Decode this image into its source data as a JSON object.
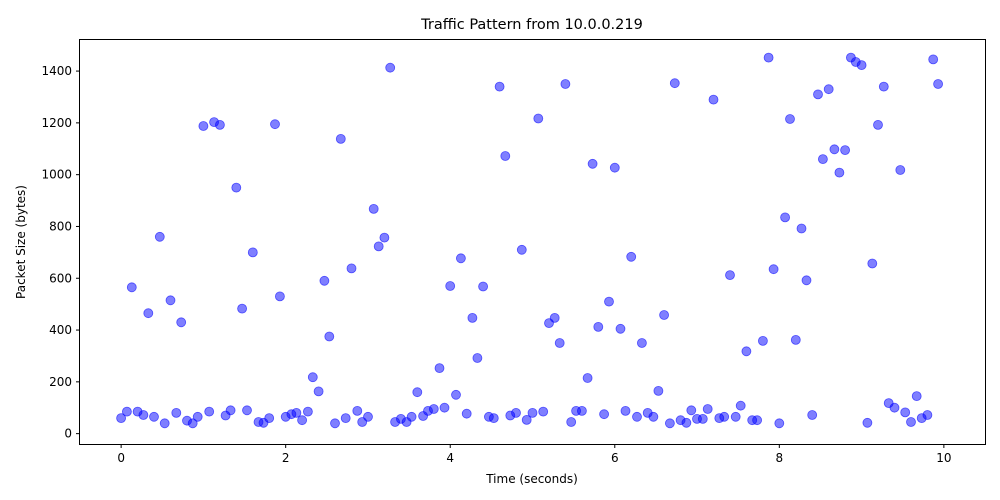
{
  "chart_data": {
    "type": "scatter",
    "title": "Traffic Pattern from 10.0.0.219",
    "xlabel": "Time (seconds)",
    "ylabel": "Packet Size (bytes)",
    "xlim": [
      -0.5,
      10.5
    ],
    "ylim": [
      -40,
      1520
    ],
    "xticks": [
      0,
      2,
      4,
      6,
      8,
      10
    ],
    "yticks": [
      0,
      200,
      400,
      600,
      800,
      1000,
      1200,
      1400
    ],
    "grid": false,
    "legend": "none",
    "point_color": "#0000ff",
    "point_opacity": 0.5,
    "series": [
      {
        "points": [
          [
            0.0,
            60
          ],
          [
            0.07,
            85
          ],
          [
            0.13,
            565
          ],
          [
            0.2,
            85
          ],
          [
            0.27,
            72
          ],
          [
            0.33,
            465
          ],
          [
            0.4,
            65
          ],
          [
            0.47,
            760
          ],
          [
            0.53,
            40
          ],
          [
            0.6,
            515
          ],
          [
            0.67,
            80
          ],
          [
            0.73,
            430
          ],
          [
            0.8,
            50
          ],
          [
            0.87,
            40
          ],
          [
            0.93,
            65
          ],
          [
            1.0,
            1188
          ],
          [
            1.07,
            85
          ],
          [
            1.13,
            1203
          ],
          [
            1.2,
            1192
          ],
          [
            1.27,
            70
          ],
          [
            1.33,
            90
          ],
          [
            1.4,
            950
          ],
          [
            1.47,
            483
          ],
          [
            1.53,
            90
          ],
          [
            1.6,
            700
          ],
          [
            1.67,
            45
          ],
          [
            1.73,
            42
          ],
          [
            1.8,
            60
          ],
          [
            1.87,
            1195
          ],
          [
            1.93,
            530
          ],
          [
            2.0,
            65
          ],
          [
            2.07,
            75
          ],
          [
            2.13,
            80
          ],
          [
            2.2,
            52
          ],
          [
            2.27,
            85
          ],
          [
            2.33,
            218
          ],
          [
            2.4,
            163
          ],
          [
            2.47,
            590
          ],
          [
            2.53,
            375
          ],
          [
            2.6,
            40
          ],
          [
            2.67,
            1138
          ],
          [
            2.73,
            60
          ],
          [
            2.8,
            638
          ],
          [
            2.87,
            88
          ],
          [
            2.93,
            45
          ],
          [
            3.0,
            65
          ],
          [
            3.07,
            868
          ],
          [
            3.13,
            723
          ],
          [
            3.2,
            757
          ],
          [
            3.27,
            1413
          ],
          [
            3.33,
            45
          ],
          [
            3.4,
            57
          ],
          [
            3.47,
            45
          ],
          [
            3.53,
            65
          ],
          [
            3.6,
            160
          ],
          [
            3.67,
            68
          ],
          [
            3.73,
            88
          ],
          [
            3.8,
            95
          ],
          [
            3.87,
            253
          ],
          [
            3.93,
            100
          ],
          [
            4.0,
            570
          ],
          [
            4.07,
            150
          ],
          [
            4.13,
            677
          ],
          [
            4.2,
            77
          ],
          [
            4.27,
            447
          ],
          [
            4.33,
            292
          ],
          [
            4.4,
            568
          ],
          [
            4.47,
            65
          ],
          [
            4.53,
            60
          ],
          [
            4.6,
            1340
          ],
          [
            4.67,
            1072
          ],
          [
            4.73,
            70
          ],
          [
            4.8,
            80
          ],
          [
            4.87,
            710
          ],
          [
            4.93,
            53
          ],
          [
            5.0,
            80
          ],
          [
            5.07,
            1217
          ],
          [
            5.13,
            85
          ],
          [
            5.2,
            427
          ],
          [
            5.27,
            447
          ],
          [
            5.33,
            350
          ],
          [
            5.4,
            1350
          ],
          [
            5.47,
            45
          ],
          [
            5.53,
            88
          ],
          [
            5.6,
            88
          ],
          [
            5.67,
            215
          ],
          [
            5.73,
            1042
          ],
          [
            5.8,
            412
          ],
          [
            5.87,
            75
          ],
          [
            5.93,
            510
          ],
          [
            6.0,
            1027
          ],
          [
            6.07,
            405
          ],
          [
            6.13,
            88
          ],
          [
            6.2,
            683
          ],
          [
            6.27,
            65
          ],
          [
            6.33,
            350
          ],
          [
            6.4,
            80
          ],
          [
            6.47,
            65
          ],
          [
            6.53,
            165
          ],
          [
            6.6,
            458
          ],
          [
            6.67,
            40
          ],
          [
            6.73,
            1353
          ],
          [
            6.8,
            52
          ],
          [
            6.87,
            42
          ],
          [
            6.93,
            90
          ],
          [
            7.0,
            57
          ],
          [
            7.07,
            57
          ],
          [
            7.13,
            95
          ],
          [
            7.2,
            1290
          ],
          [
            7.27,
            60
          ],
          [
            7.33,
            65
          ],
          [
            7.4,
            612
          ],
          [
            7.47,
            65
          ],
          [
            7.53,
            108
          ],
          [
            7.6,
            318
          ],
          [
            7.67,
            52
          ],
          [
            7.73,
            52
          ],
          [
            7.8,
            358
          ],
          [
            7.87,
            1452
          ],
          [
            7.93,
            635
          ],
          [
            8.0,
            40
          ],
          [
            8.07,
            835
          ],
          [
            8.13,
            1215
          ],
          [
            8.2,
            362
          ],
          [
            8.27,
            792
          ],
          [
            8.33,
            592
          ],
          [
            8.4,
            72
          ],
          [
            8.47,
            1310
          ],
          [
            8.53,
            1060
          ],
          [
            8.6,
            1330
          ],
          [
            8.67,
            1098
          ],
          [
            8.73,
            1008
          ],
          [
            8.8,
            1095
          ],
          [
            8.87,
            1452
          ],
          [
            8.93,
            1435
          ],
          [
            9.0,
            1423
          ],
          [
            9.07,
            42
          ],
          [
            9.13,
            657
          ],
          [
            9.2,
            1192
          ],
          [
            9.27,
            1340
          ],
          [
            9.33,
            118
          ],
          [
            9.4,
            100
          ],
          [
            9.47,
            1018
          ],
          [
            9.53,
            82
          ],
          [
            9.6,
            45
          ],
          [
            9.67,
            145
          ],
          [
            9.73,
            60
          ],
          [
            9.8,
            72
          ],
          [
            9.87,
            1445
          ],
          [
            9.93,
            1350
          ]
        ]
      }
    ]
  }
}
